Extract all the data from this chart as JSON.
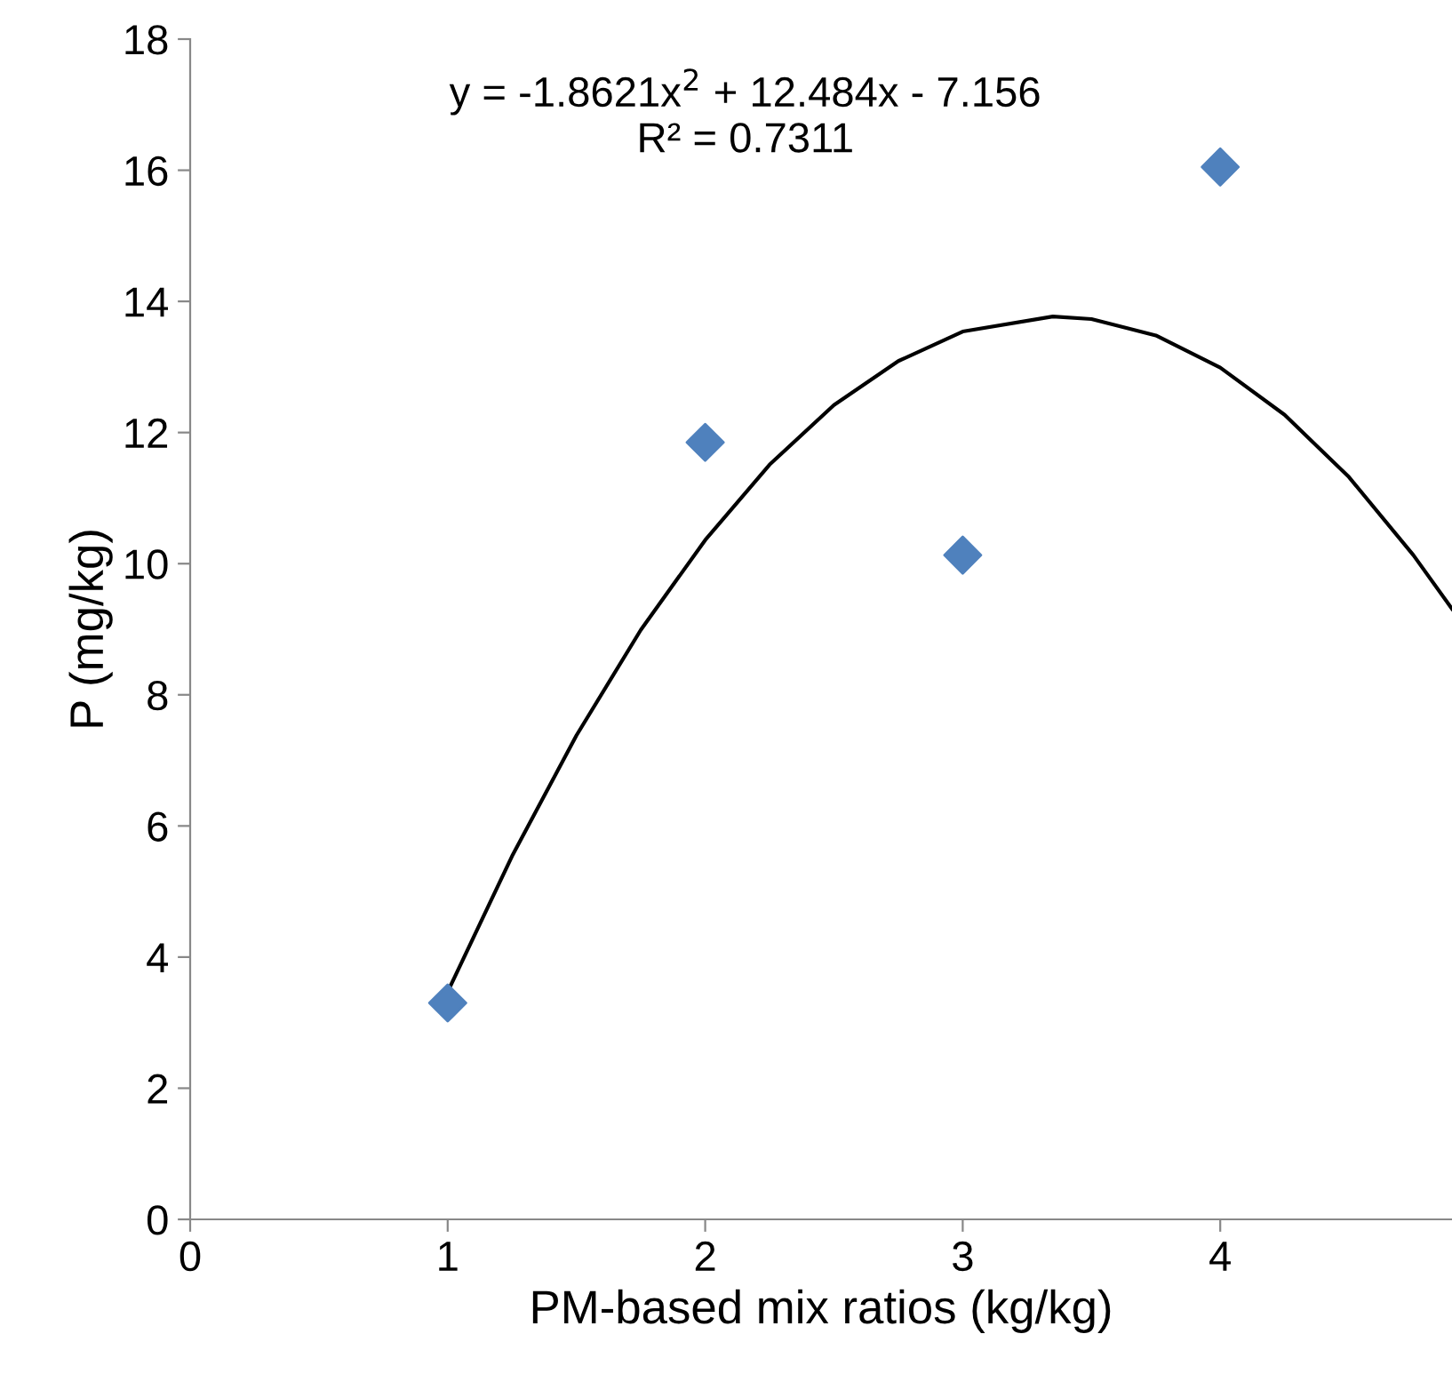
{
  "chart_data": {
    "type": "scatter",
    "xlabel": "PM-based mix ratios (kg/kg)",
    "ylabel": "P (mg/kg)",
    "annotations": [
      "y = -1.8621x$^{2}$ + 12.484x - 7.156",
      "R² = 0.7311"
    ],
    "x": [
      1,
      2,
      3,
      4
    ],
    "series": [
      {
        "color": "#4f81bd",
        "marker": "diamond",
        "values": [
          3.3,
          11.85,
          10.13,
          16.05
        ]
      },
      {
        "type": "line",
        "color": "#000000",
        "marker": "none",
        "line_style": "solid",
        "x": [
          1,
          1.25,
          1.5,
          1.75,
          2,
          2.25,
          2.5,
          2.75,
          3,
          3.35,
          3.5,
          3.75,
          4,
          4.25,
          4.5,
          4.75,
          4.9
        ],
        "values": [
          3.47,
          5.54,
          7.38,
          8.99,
          10.36,
          11.51,
          12.42,
          13.09,
          13.54,
          13.77,
          13.73,
          13.48,
          12.99,
          12.27,
          11.32,
          10.13,
          9.31
        ]
      }
    ],
    "xlim": [
      0,
      4.9
    ],
    "xticks": [
      0,
      1,
      2,
      3,
      4
    ],
    "ylim": [
      0,
      18
    ],
    "yticks": [
      0,
      2,
      4,
      6,
      8,
      10,
      12,
      14,
      16,
      18
    ],
    "grid": false,
    "legend": false
  }
}
